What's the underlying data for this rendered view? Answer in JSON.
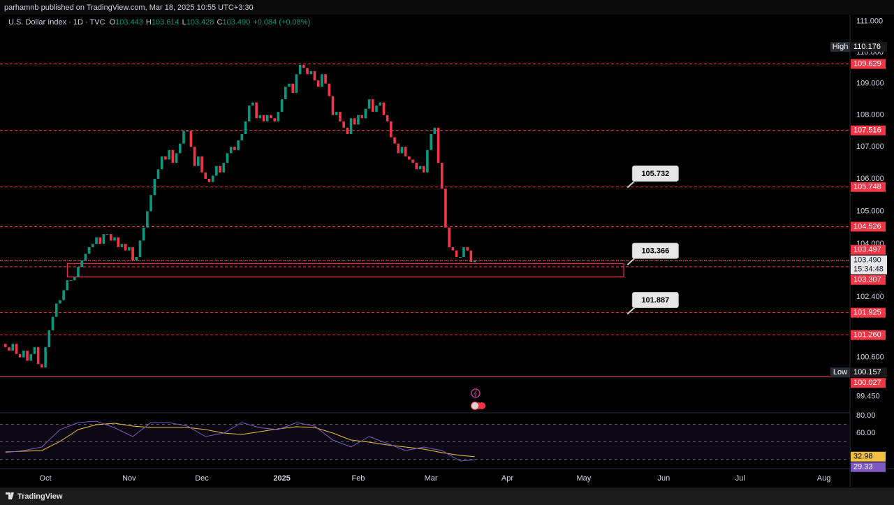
{
  "header": {
    "published": "parhamnb published on TradingView.com, Mar 18, 2025 10:55 UTC+3:30"
  },
  "legend": {
    "symbol": "U.S. Dollar Index · 1D · TVC",
    "color": "#089981",
    "ohlc": [
      {
        "key": "O",
        "value": "103.443"
      },
      {
        "key": "H",
        "value": "103.614"
      },
      {
        "key": "L",
        "value": "103.428"
      },
      {
        "key": "C",
        "value": "103.490"
      }
    ],
    "change": "+0.084 (+0.08%)"
  },
  "chart_data": [
    {
      "type": "candlestick",
      "log_scale": true,
      "grid": false,
      "up_color": "#089981",
      "down_color": "#f23645",
      "open": [
        101.0,
        100.9,
        100.8,
        101.0,
        100.7,
        100.6,
        100.8,
        100.5,
        100.7,
        100.9,
        100.4,
        100.3,
        100.9,
        101.4,
        101.8,
        102.2,
        102.3,
        102.6,
        102.9,
        102.9,
        103.0,
        103.3,
        103.5,
        103.7,
        103.9,
        104.0,
        104.2,
        104.0,
        104.3,
        104.3,
        104.1,
        104.2,
        103.9,
        104.0,
        103.8,
        103.9,
        103.5,
        103.6,
        104.1,
        104.5,
        105.0,
        105.5,
        106.0,
        106.3,
        106.7,
        106.6,
        106.9,
        106.5,
        106.8,
        107.1,
        107.5,
        107.5,
        107.0,
        106.4,
        106.7,
        106.2,
        106.0,
        105.9,
        106.1,
        106.4,
        106.2,
        106.5,
        106.8,
        107.0,
        106.9,
        107.2,
        107.4,
        107.8,
        108.3,
        108.4,
        107.9,
        108.0,
        107.8,
        108.0,
        107.9,
        107.8,
        108.1,
        108.5,
        108.9,
        109.0,
        108.7,
        109.3,
        109.6,
        109.5,
        109.3,
        109.4,
        109.1,
        108.9,
        109.3,
        109.0,
        108.6,
        108.0,
        108.1,
        107.8,
        107.6,
        107.4,
        107.9,
        107.7,
        108.0,
        107.9,
        108.2,
        108.5,
        108.1,
        108.3,
        108.4,
        108.0,
        107.8,
        107.3,
        107.1,
        106.8,
        107.0,
        106.7,
        106.6,
        106.5,
        106.3,
        106.4,
        106.2,
        106.9,
        107.4,
        107.6,
        106.5,
        105.7,
        104.5,
        103.9,
        103.8,
        103.6,
        103.6,
        103.9,
        103.8,
        103.443
      ],
      "high": {
        "label": "High",
        "value": 110.176
      },
      "low": {
        "label": "Low",
        "value": 100.157
      },
      "close": [
        100.9,
        100.8,
        101.0,
        100.7,
        100.6,
        100.8,
        100.5,
        100.7,
        100.9,
        100.4,
        100.3,
        100.9,
        101.4,
        101.8,
        102.2,
        102.3,
        102.6,
        102.9,
        102.9,
        103.0,
        103.3,
        103.5,
        103.7,
        103.9,
        104.0,
        104.2,
        104.0,
        104.3,
        104.3,
        104.1,
        104.2,
        103.9,
        104.0,
        103.8,
        103.9,
        103.5,
        103.6,
        104.1,
        104.5,
        105.0,
        105.5,
        106.0,
        106.3,
        106.7,
        106.6,
        106.9,
        106.5,
        106.8,
        107.1,
        107.5,
        107.5,
        107.0,
        106.4,
        106.7,
        106.2,
        106.0,
        105.9,
        106.1,
        106.4,
        106.2,
        106.5,
        106.8,
        107.0,
        106.9,
        107.2,
        107.4,
        107.8,
        108.3,
        108.4,
        107.9,
        108.0,
        107.8,
        108.0,
        107.9,
        107.8,
        108.1,
        108.5,
        108.9,
        109.0,
        108.7,
        109.3,
        109.6,
        109.5,
        109.3,
        109.4,
        109.1,
        108.9,
        109.3,
        109.0,
        108.6,
        108.0,
        108.1,
        107.8,
        107.6,
        107.4,
        107.9,
        107.7,
        108.0,
        107.9,
        108.2,
        108.5,
        108.1,
        108.3,
        108.4,
        108.0,
        107.8,
        107.3,
        107.1,
        106.8,
        107.0,
        106.7,
        106.6,
        106.5,
        106.3,
        106.4,
        106.2,
        106.9,
        107.4,
        107.6,
        106.5,
        105.7,
        104.5,
        103.9,
        103.8,
        103.6,
        103.6,
        103.9,
        103.8,
        103.45,
        103.49
      ],
      "xlim": [
        -1.5,
        232
      ],
      "ylim": [
        99.0,
        111.2
      ],
      "yticks": [
        {
          "value": 111,
          "label": "111.000"
        },
        {
          "value": 110,
          "label": "110.000"
        },
        {
          "value": 109,
          "label": "109.000"
        },
        {
          "value": 108,
          "label": "108.000"
        },
        {
          "value": 107,
          "label": "107.000"
        },
        {
          "value": 106,
          "label": "106.000"
        },
        {
          "value": 105,
          "label": "105.000"
        },
        {
          "value": 104,
          "label": "104.000"
        },
        {
          "value": 102.4,
          "label": "102.400"
        },
        {
          "value": 100.6,
          "label": "100.600"
        },
        {
          "value": 99.45,
          "label": "99.450"
        }
      ],
      "xticks": [
        {
          "value": 11,
          "label": "Oct"
        },
        {
          "value": 34,
          "label": "Nov"
        },
        {
          "value": 54,
          "label": "Dec"
        },
        {
          "value": 76,
          "label": "2025"
        },
        {
          "value": 97,
          "label": "Feb"
        },
        {
          "value": 117,
          "label": "Mar"
        },
        {
          "value": 138,
          "label": "Apr"
        },
        {
          "value": 159,
          "label": "May"
        },
        {
          "value": 181,
          "label": "Jun"
        },
        {
          "value": 202,
          "label": "Jul"
        },
        {
          "value": 225,
          "label": "Aug"
        }
      ],
      "level_color": "#f23645",
      "levels": [
        109.629,
        107.516,
        105.748,
        104.526,
        103.497,
        103.307,
        101.925,
        {
          "value": 101.26,
          "label": "101.260"
        }
      ],
      "low_line": 100.027,
      "last_price": {
        "value": 103.49,
        "label": "103.490"
      },
      "countdown": "15:34:48",
      "zone": {
        "x": [
          17,
          170
        ],
        "y": [
          103.0,
          103.4
        ]
      },
      "annotations": [
        {
          "value": 105.732,
          "x": 171
        },
        {
          "value": 103.366,
          "x": 171
        },
        {
          "value": 101.887,
          "x": 171
        }
      ]
    },
    {
      "type": "line",
      "ylim": [
        21.6,
        82.4
      ],
      "yticks": [
        {
          "value": 80,
          "label": "80.00"
        },
        {
          "value": 60,
          "label": "60.00"
        }
      ],
      "levels": [
        70,
        50,
        30
      ],
      "band": [
        30,
        70
      ],
      "x": [
        0,
        5,
        10,
        15,
        20,
        25,
        30,
        35,
        40,
        45,
        50,
        55,
        60,
        65,
        70,
        75,
        80,
        85,
        90,
        95,
        100,
        105,
        110,
        115,
        120,
        125,
        129
      ],
      "series": [
        {
          "color": "#f0c043",
          "text_color": "#000000",
          "values": [
            38.4,
            39.2,
            40,
            50.4,
            64,
            69.6,
            71.2,
            68,
            66.4,
            66.4,
            66.4,
            64,
            60,
            58.4,
            61.6,
            64.8,
            67.2,
            66.4,
            60,
            52,
            49.6,
            46.4,
            44,
            41.6,
            37.6,
            34.4,
            32.98
          ]
        },
        {
          "color": "#7e57c2",
          "text_color": "#ffffff",
          "values": [
            37.6,
            40,
            44,
            64,
            72,
            73.6,
            66,
            56,
            72,
            72,
            68,
            56,
            60,
            72,
            66,
            64,
            72,
            68,
            52,
            44,
            56,
            48,
            40,
            44,
            40,
            28,
            29.33
          ]
        }
      ]
    }
  ],
  "footer": {
    "brand": "TradingView"
  }
}
